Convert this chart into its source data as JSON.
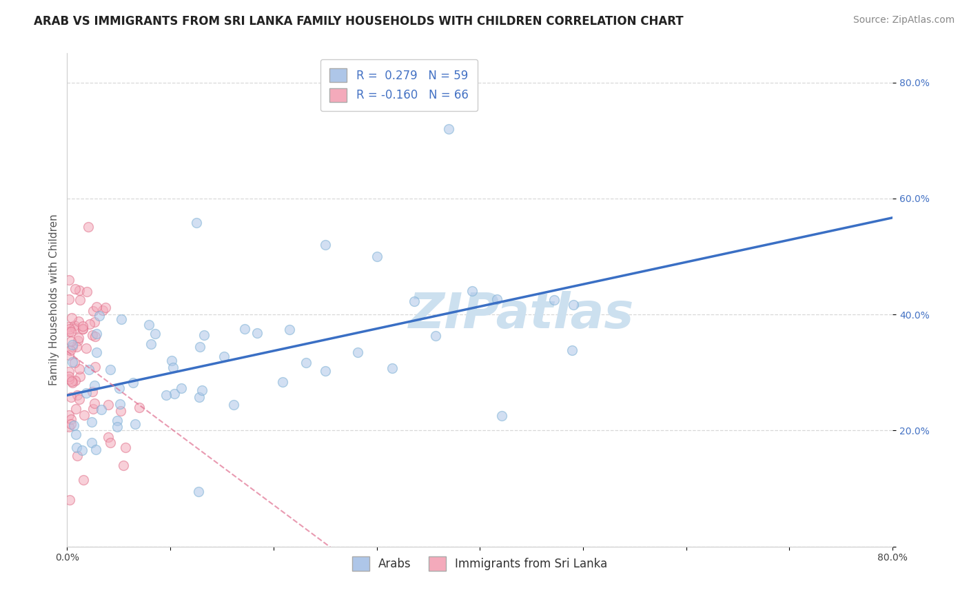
{
  "title": "ARAB VS IMMIGRANTS FROM SRI LANKA FAMILY HOUSEHOLDS WITH CHILDREN CORRELATION CHART",
  "source": "Source: ZipAtlas.com",
  "ylabel": "Family Households with Children",
  "watermark": "ZIPatlas",
  "legend_arab": "Arabs",
  "legend_srilanka": "Immigrants from Sri Lanka",
  "arab_R": 0.279,
  "arab_N": 59,
  "srilanka_R": -0.16,
  "srilanka_N": 66,
  "arab_color": "#aec6e8",
  "arab_edge": "#7aafd4",
  "srilanka_color": "#f4aabb",
  "srilanka_edge": "#e0708a",
  "arab_line_color": "#3a6fc4",
  "srilanka_line_color": "#e07090",
  "background_color": "#ffffff",
  "grid_color": "#d8d8d8",
  "title_fontsize": 12,
  "axis_label_fontsize": 11,
  "tick_fontsize": 10,
  "legend_fontsize": 12,
  "source_fontsize": 10,
  "watermark_fontsize": 52,
  "watermark_color": "#cce0ef",
  "scatter_size": 100,
  "scatter_alpha": 0.55,
  "scatter_linewidth": 1.0
}
